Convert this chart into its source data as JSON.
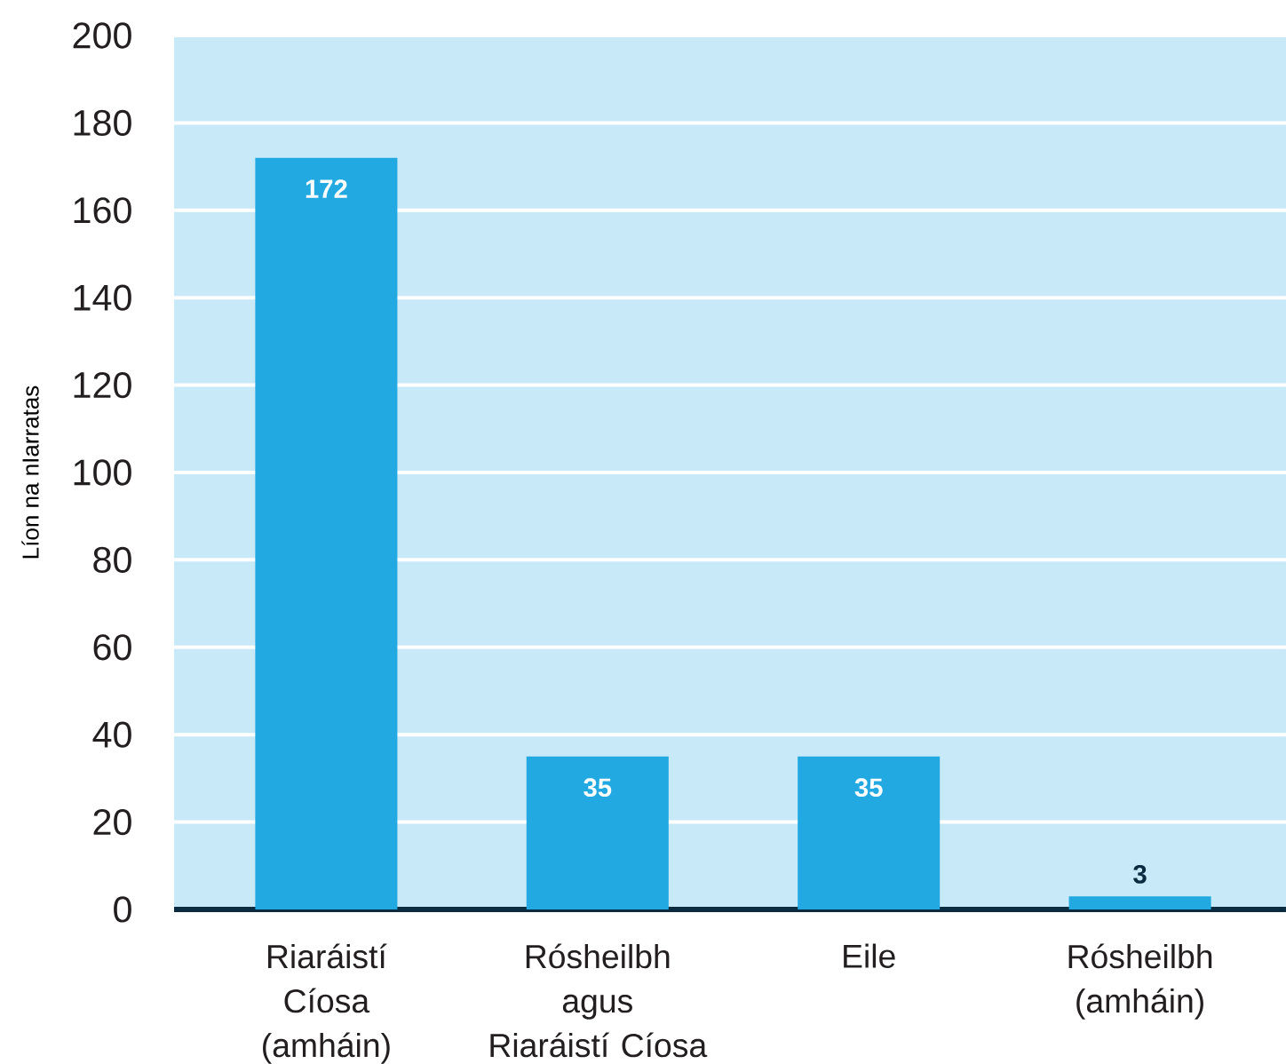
{
  "chart_data": {
    "type": "bar",
    "ylabel": "Líon na nIarratas",
    "categories": [
      "Riaráistí\nCíosa\n(amháin)",
      "Rósheilbh\nagus\nRiaráistí Cíosa",
      "Eile",
      "Rósheilbh\n(amháin)"
    ],
    "values": [
      172,
      35,
      35,
      3
    ],
    "color": "#23a9e1",
    "ylim": [
      0,
      200
    ],
    "yticks": [
      0,
      20,
      40,
      60,
      80,
      100,
      120,
      140,
      160,
      180,
      200
    ],
    "grid": "y",
    "data_labels": true
  }
}
